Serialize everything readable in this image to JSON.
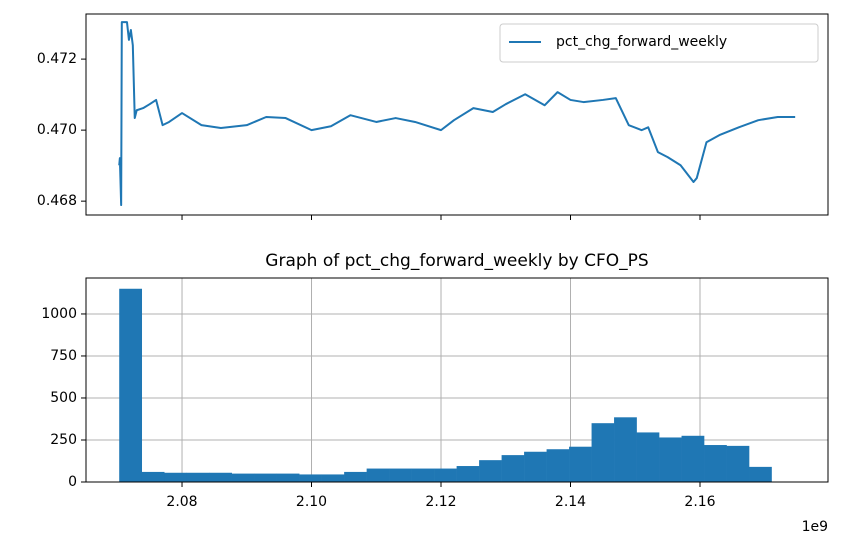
{
  "chart_data": [
    {
      "type": "line",
      "x": [
        2070300000,
        2070400000,
        2070600000,
        2070700000,
        2070800000,
        2071000000,
        2071500000,
        2071800000,
        2072100000,
        2072400000,
        2072700000,
        2073000000,
        2074000000,
        2075000000,
        2076000000,
        2077000000,
        2078000000,
        2080000000,
        2083000000,
        2086000000,
        2090000000,
        2093000000,
        2096000000,
        2100000000,
        2103000000,
        2106000000,
        2110000000,
        2113000000,
        2116000000,
        2120000000,
        2122000000,
        2125000000,
        2128000000,
        2130000000,
        2133000000,
        2136000000,
        2138000000,
        2140000000,
        2142000000,
        2145000000,
        2147000000,
        2149000000,
        2151000000,
        2152000000,
        2153500000,
        2155000000,
        2157000000,
        2159000000,
        2159500000,
        2161000000,
        2163000000,
        2166000000,
        2169000000,
        2172000000,
        2174700000
      ],
      "series": [
        {
          "name": "pct_chg_forward_weekly",
          "color": "#1f77b4",
          "values": [
            0.46901,
            0.46921,
            0.46789,
            0.47304,
            0.47304,
            0.47304,
            0.47304,
            0.47254,
            0.47282,
            0.47239,
            0.47034,
            0.47056,
            0.47062,
            0.47073,
            0.47085,
            0.47014,
            0.47023,
            0.47048,
            0.47014,
            0.47006,
            0.47014,
            0.47037,
            0.47034,
            0.47,
            0.47011,
            0.47042,
            0.47023,
            0.47034,
            0.47023,
            0.47,
            0.47028,
            0.47062,
            0.47051,
            0.47073,
            0.47101,
            0.4707,
            0.47107,
            0.47085,
            0.47079,
            0.47085,
            0.4709,
            0.47014,
            0.47,
            0.47008,
            0.46938,
            0.46924,
            0.46901,
            0.46854,
            0.46865,
            0.46966,
            0.46986,
            0.47008,
            0.47028,
            0.47037,
            0.47037
          ]
        }
      ],
      "xlim": [
        2065170000,
        2179770000
      ],
      "xticks": [
        2080000000,
        2100000000,
        2120000000,
        2140000000,
        2160000000
      ],
      "ylim": [
        0.46761,
        0.47327
      ],
      "yticks": [
        0.468,
        {
          "value": 0.47,
          "label": "0.470"
        },
        0.472
      ],
      "grid": false,
      "legend": "upper right"
    },
    {
      "type": "histogram",
      "title": "Graph of pct_chg_forward_weekly by CFO_PS",
      "bins": [
        2070300000,
        2073774000,
        2077248000,
        2080722000,
        2084196000,
        2087670000,
        2091144000,
        2094618000,
        2098092000,
        2101566000,
        2105040000,
        2108514000,
        2111988000,
        2115462000,
        2118936000,
        2122410000,
        2125884000,
        2129358000,
        2132832000,
        2136306000,
        2139780000,
        2143254000,
        2146728000,
        2150202000,
        2153676000,
        2157150000,
        2160624000,
        2164098000,
        2167572000,
        2171046000
      ],
      "values": [
        1150,
        60,
        55,
        55,
        55,
        50,
        50,
        50,
        45,
        45,
        60,
        80,
        80,
        80,
        80,
        95,
        130,
        160,
        180,
        195,
        210,
        350,
        385,
        295,
        265,
        275,
        220,
        215,
        90
      ],
      "color": "#1f77b4",
      "xlim": [
        2065170000,
        2179770000
      ],
      "xticks": [
        {
          "value": 2080000000,
          "label": "2.08"
        },
        {
          "value": 2100000000,
          "label": "2.10"
        },
        {
          "value": 2120000000,
          "label": "2.12"
        },
        {
          "value": 2140000000,
          "label": "2.14"
        },
        {
          "value": 2160000000,
          "label": "2.16"
        }
      ],
      "x_offset_label": "1e9",
      "ylim": [
        0,
        1214
      ],
      "yticks": [
        0,
        250,
        500,
        750,
        1000
      ],
      "grid": true
    }
  ]
}
